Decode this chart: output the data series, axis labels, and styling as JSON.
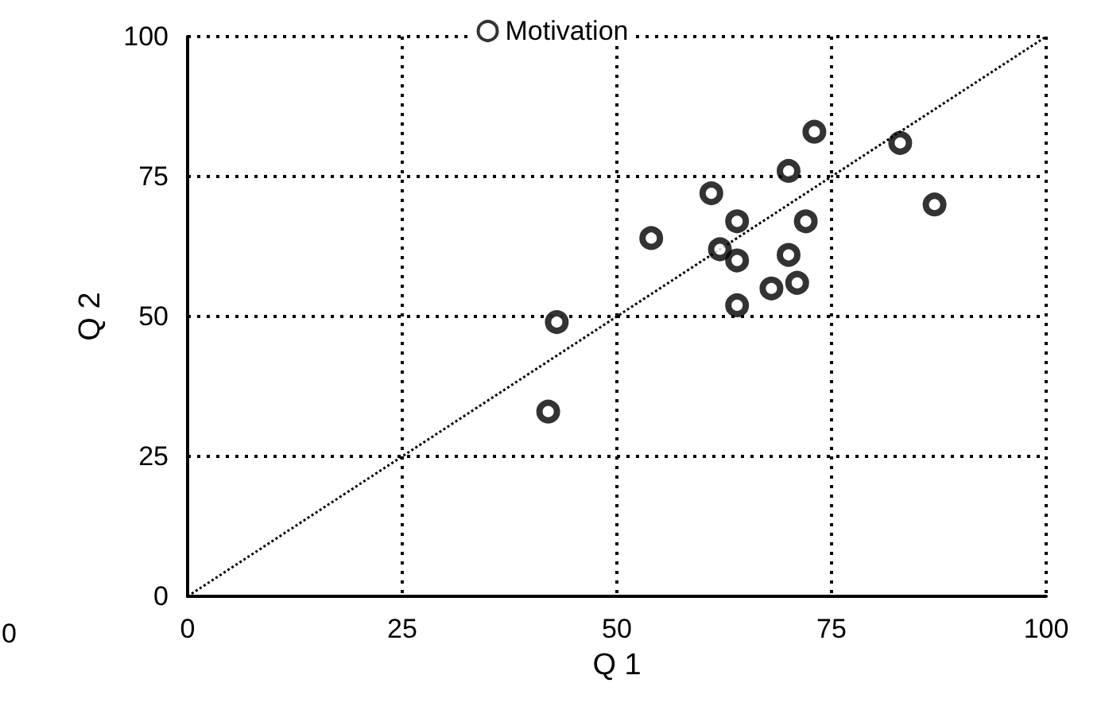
{
  "chart_data": {
    "type": "scatter",
    "xlabel": "Q 1",
    "ylabel": "Q 2",
    "xlim": [
      0,
      100
    ],
    "ylim": [
      0,
      100
    ],
    "xticks": [
      0,
      25,
      50,
      75,
      100
    ],
    "yticks": [
      0,
      25,
      50,
      75,
      100
    ],
    "grid": true,
    "legend": "top",
    "marker": "circle",
    "annotations": [
      "0"
    ],
    "series": [
      {
        "name": "Motivation",
        "color": "#000000",
        "x": [
          43,
          42,
          54,
          61,
          62,
          64,
          64,
          64,
          68,
          70,
          70,
          71,
          72,
          73,
          83,
          87
        ],
        "values": [
          49,
          33,
          64,
          72,
          62,
          67,
          60,
          52,
          55,
          61,
          76,
          56,
          67,
          83,
          81,
          70
        ]
      },
      {
        "type": "line",
        "color": "#000000",
        "x": [
          0,
          100
        ],
        "values": [
          0,
          100
        ],
        "marker": "none",
        "line_style": "dotted"
      }
    ]
  }
}
